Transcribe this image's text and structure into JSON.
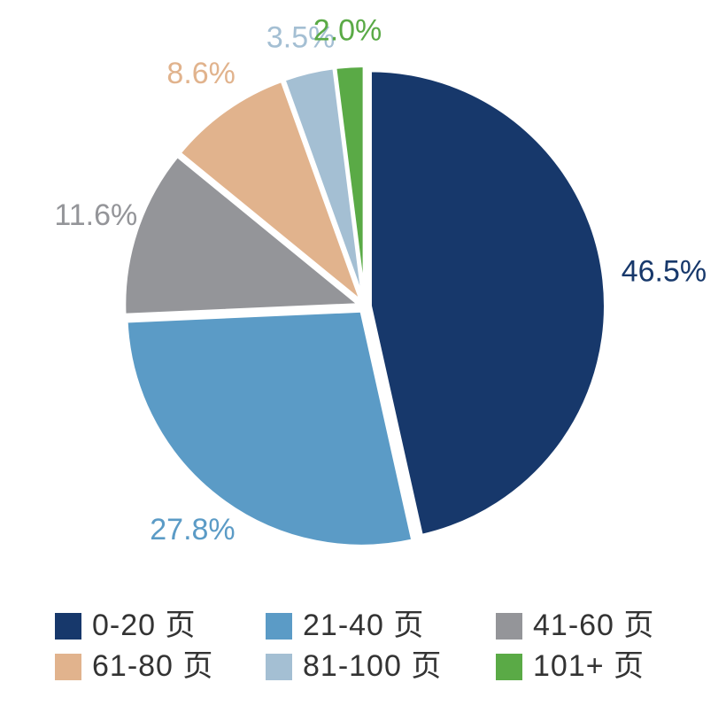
{
  "chart_data": {
    "type": "pie",
    "categories": [
      "0-20 页",
      "21-40 页",
      "41-60 页",
      "61-80 页",
      "81-100 页",
      "101+ 页"
    ],
    "values": [
      46.5,
      27.8,
      11.6,
      8.6,
      3.5,
      2.0
    ],
    "value_labels": [
      "46.5%",
      "27.8%",
      "11.6%",
      "8.6%",
      "3.5%",
      "2.0%"
    ],
    "colors": [
      "#17386b",
      "#5b9bc6",
      "#949599",
      "#e1b38d",
      "#a4bfd3",
      "#5aaa46"
    ]
  }
}
